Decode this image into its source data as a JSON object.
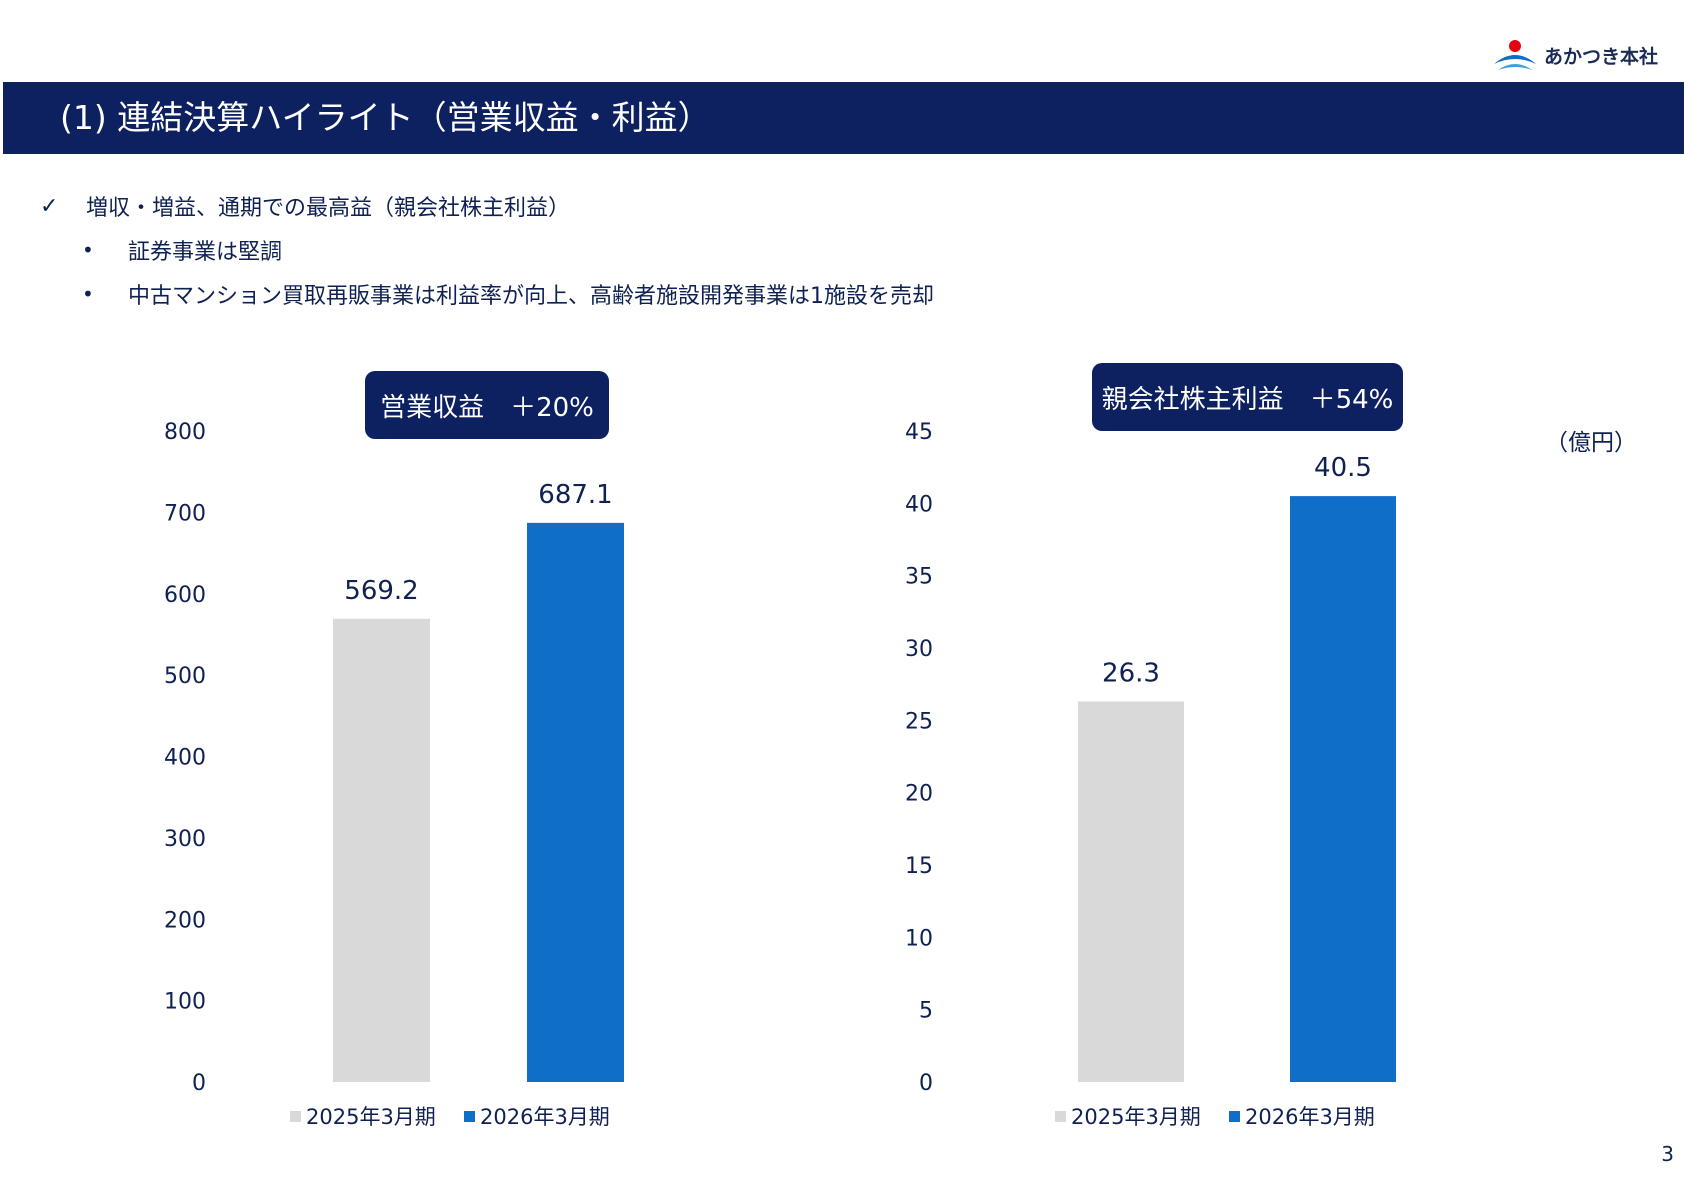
{
  "brand": {
    "name": "あかつき本社",
    "logo_icon": "rising-sun-wave-icon"
  },
  "title": "(1) 連結決算ハイライト（営業収益・利益）",
  "bullets": {
    "main": {
      "mark": "✓",
      "text": "増収・増益、通期での最高益（親会社株主利益）"
    },
    "sub": [
      {
        "mark": "•",
        "text": "証券事業は堅調"
      },
      {
        "mark": "•",
        "text": "中古マンション買取再販事業は利益率が向上、高齢者施設開発事業は1施設を売却"
      }
    ]
  },
  "unit": "（億円）",
  "page_number": "3",
  "colors": {
    "navy": "#0d2060",
    "prior": "#d9d9d9",
    "current": "#0e6ec8",
    "text": "#0f2152"
  },
  "chart_data": [
    {
      "type": "bar",
      "badge": "営業収益　＋20%",
      "categories": [
        "2025年3月期",
        "2026年3月期"
      ],
      "values": [
        569.2,
        687.1
      ],
      "value_labels": [
        "569.2",
        "687.1"
      ],
      "ylim": [
        0,
        800
      ],
      "yticks": [
        0,
        100,
        200,
        300,
        400,
        500,
        600,
        700,
        800
      ],
      "legend": [
        "2025年3月期",
        "2026年3月期"
      ],
      "legend_position": "bottom",
      "grid": false
    },
    {
      "type": "bar",
      "badge": "親会社株主利益　＋54%",
      "categories": [
        "2025年3月期",
        "2026年3月期"
      ],
      "values": [
        26.3,
        40.5
      ],
      "value_labels": [
        "26.3",
        "40.5"
      ],
      "ylim": [
        0,
        45
      ],
      "yticks": [
        0,
        5,
        10,
        15,
        20,
        25,
        30,
        35,
        40,
        45
      ],
      "legend": [
        "2025年3月期",
        "2026年3月期"
      ],
      "legend_position": "bottom",
      "grid": false
    }
  ]
}
